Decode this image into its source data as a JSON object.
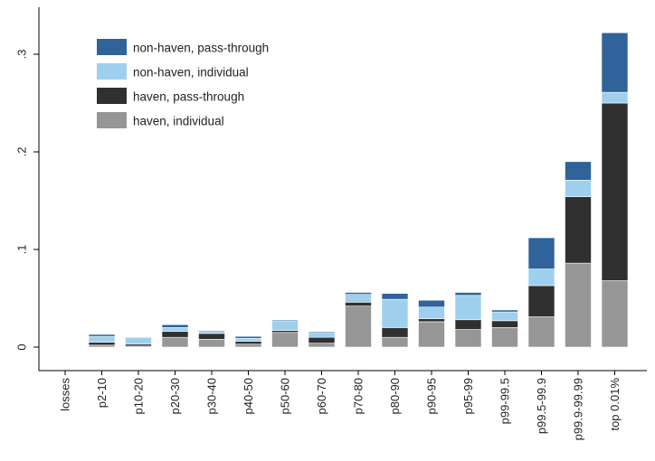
{
  "chart_data": {
    "type": "bar",
    "stacked": true,
    "title": "",
    "xlabel": "",
    "ylabel": "",
    "ylim": [
      0,
      0.34
    ],
    "yticks": [
      0,
      0.1,
      0.2,
      0.3
    ],
    "ytick_labels": [
      "0",
      ".1",
      ".2",
      ".3"
    ],
    "grid": false,
    "legend_position": "top-left",
    "categories": [
      "losses",
      "p2-10",
      "p10-20",
      "p20-30",
      "p30-40",
      "p40-50",
      "p50-60",
      "p60-70",
      "p70-80",
      "p80-90",
      "p90-95",
      "p95-99",
      "p99-99.5",
      "p99.5-99.9",
      "p99.9-99.99",
      "top 0.01%"
    ],
    "series": [
      {
        "name": "haven, individual",
        "color": "#969696",
        "values": [
          0,
          0.002,
          0.001,
          0.01,
          0.008,
          0.003,
          0.015,
          0.004,
          0.042,
          0.01,
          0.026,
          0.018,
          0.02,
          0.031,
          0.086,
          0.068
        ]
      },
      {
        "name": "haven, pass-through",
        "color": "#303030",
        "values": [
          0,
          0.003,
          0.002,
          0.006,
          0.006,
          0.003,
          0.002,
          0.006,
          0.004,
          0.01,
          0.003,
          0.01,
          0.007,
          0.032,
          0.068,
          0.182
        ]
      },
      {
        "name": "non-haven, individual",
        "color": "#9ed0ee",
        "values": [
          0,
          0.006,
          0.007,
          0.004,
          0.002,
          0.003,
          0.01,
          0.005,
          0.008,
          0.029,
          0.012,
          0.025,
          0.009,
          0.017,
          0.017,
          0.011
        ]
      },
      {
        "name": "non-haven, pass-through",
        "color": "#2f6399",
        "values": [
          0,
          0.002,
          0.0,
          0.003,
          0.001,
          0.002,
          0.001,
          0.001,
          0.002,
          0.006,
          0.007,
          0.003,
          0.002,
          0.032,
          0.019,
          0.061
        ]
      }
    ],
    "legend_order": [
      "non-haven, pass-through",
      "non-haven, individual",
      "haven, pass-through",
      "haven, individual"
    ]
  }
}
